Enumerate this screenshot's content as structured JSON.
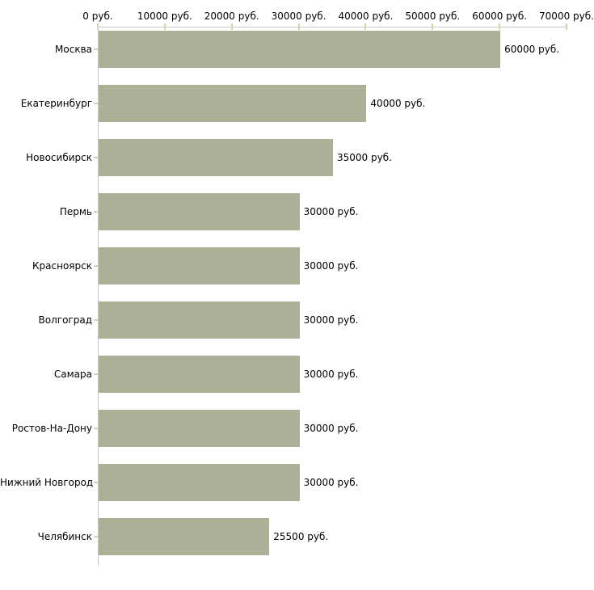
{
  "chart_data": {
    "type": "bar",
    "orientation": "horizontal",
    "title": "",
    "xlabel": "",
    "ylabel": "",
    "categories": [
      "Москва",
      "Екатеринбург",
      "Новосибирск",
      "Пермь",
      "Красноярск",
      "Волгоград",
      "Самара",
      "Ростов-На-Дону",
      "Нижний Новгород",
      "Челябинск"
    ],
    "values": [
      60000,
      40000,
      35000,
      30000,
      30000,
      30000,
      30000,
      30000,
      30000,
      25500
    ],
    "bar_labels": [
      "60000 руб.",
      "40000 руб.",
      "35000 руб.",
      "30000 руб.",
      "30000 руб.",
      "30000 руб.",
      "30000 руб.",
      "30000 руб.",
      "30000 руб.",
      "25500 руб."
    ],
    "x_ticks": [
      0,
      10000,
      20000,
      30000,
      40000,
      50000,
      60000,
      70000
    ],
    "x_tick_labels": [
      "0 руб.",
      "10000 руб.",
      "20000 руб.",
      "30000 руб.",
      "40000 руб.",
      "50000 руб.",
      "60000 руб.",
      "70000 руб."
    ],
    "xlim": [
      0,
      70000
    ],
    "unit": "руб.",
    "legend": "none",
    "grid": "off",
    "colors": {
      "bar": "#abb096",
      "axis_line": "#c6c6c6",
      "tick_mark": "#d2d4b4",
      "text": "#000000",
      "background": "#ffffff"
    }
  }
}
